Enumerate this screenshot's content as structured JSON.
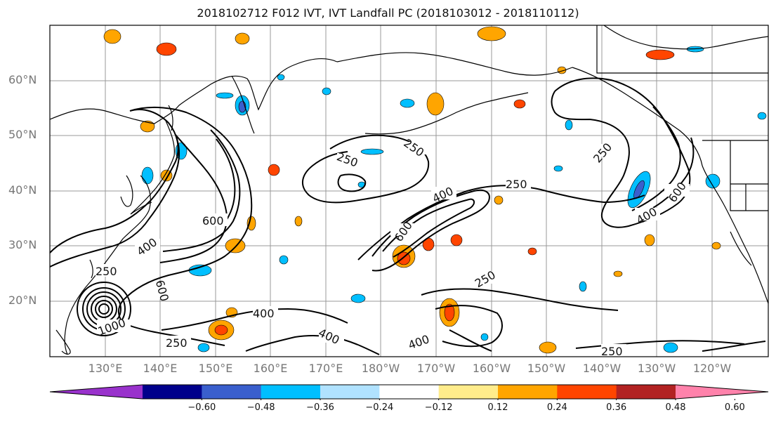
{
  "title": "2018102712 F012 IVT, IVT Landfall PC (2018103012 - 2018110112)",
  "lat_labels": [
    "60°N",
    "50°N",
    "40°N",
    "30°N",
    "20°N"
  ],
  "lon_labels": [
    "130°E",
    "140°E",
    "150°E",
    "160°E",
    "170°E",
    "180°W",
    "170°W",
    "160°W",
    "150°W",
    "140°W",
    "130°W",
    "120°W"
  ],
  "contour_labels": [
    "250",
    "250",
    "250",
    "250",
    "250",
    "250",
    "250",
    "250",
    "400",
    "400",
    "400",
    "400",
    "400",
    "400",
    "600",
    "600",
    "600",
    "600",
    "1000"
  ],
  "colorbar": {
    "ticks": [
      "−0.60",
      "−0.48",
      "−0.36",
      "−0.24",
      "−0.12",
      "0.12",
      "0.24",
      "0.36",
      "0.48",
      "0.60"
    ],
    "colors": [
      "#9932cc",
      "#00008b",
      "#3a5fcd",
      "#00bfff",
      "#b0e2ff",
      "#ffffff",
      "#ffec8b",
      "#ffa500",
      "#ff4500",
      "#b22222",
      "#ff82ab"
    ]
  },
  "colors": {
    "negative": "#00bfff",
    "positive": "#ffa500",
    "strong_positive": "#ff4500",
    "strong_negative": "#3a5fcd",
    "coast": "#000000",
    "grid": "#999999"
  }
}
